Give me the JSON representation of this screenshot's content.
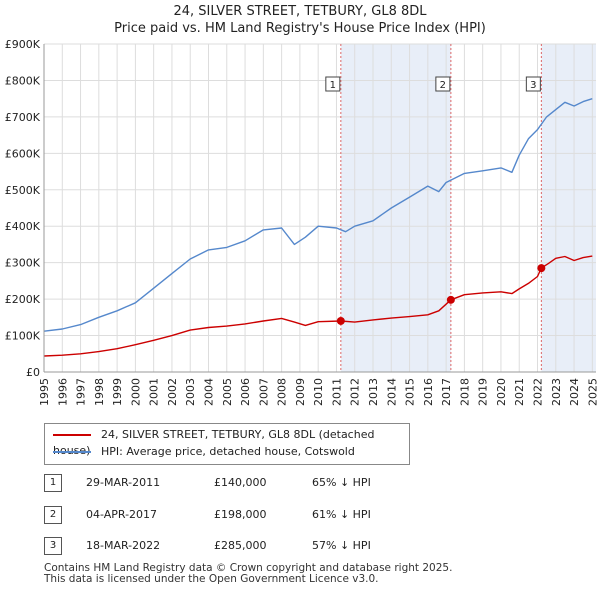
{
  "title_line1": "24, SILVER STREET, TETBURY, GL8 8DL",
  "title_line2": "Price paid vs. HM Land Registry's House Price Index (HPI)",
  "chart_data": {
    "type": "line",
    "title": "24, SILVER STREET, TETBURY, GL8 8DL",
    "subtitle": "Price paid vs. HM Land Registry's House Price Index (HPI)",
    "xlabel": "",
    "ylabel": "",
    "xlim": [
      1995,
      2025.2
    ],
    "ylim": [
      0,
      900000
    ],
    "y_ticks": [
      {
        "value": 0,
        "label": "£0"
      },
      {
        "value": 100000,
        "label": "£100K"
      },
      {
        "value": 200000,
        "label": "£200K"
      },
      {
        "value": 300000,
        "label": "£300K"
      },
      {
        "value": 400000,
        "label": "£400K"
      },
      {
        "value": 500000,
        "label": "£500K"
      },
      {
        "value": 600000,
        "label": "£600K"
      },
      {
        "value": 700000,
        "label": "£700K"
      },
      {
        "value": 800000,
        "label": "£800K"
      },
      {
        "value": 900000,
        "label": "£900K"
      }
    ],
    "x_ticks": [
      "1995",
      "1996",
      "1997",
      "1998",
      "1999",
      "2000",
      "2001",
      "2002",
      "2003",
      "2004",
      "2005",
      "2006",
      "2007",
      "2008",
      "2009",
      "2010",
      "2011",
      "2012",
      "2013",
      "2014",
      "2015",
      "2016",
      "2017",
      "2018",
      "2019",
      "2020",
      "2021",
      "2022",
      "2023",
      "2024",
      "2025"
    ],
    "grid": true,
    "series": [
      {
        "name": "24, SILVER STREET, TETBURY, GL8 8DL (detached house)",
        "color": "#cc0000",
        "x": [
          1995.0,
          1996.0,
          1997.0,
          1998.0,
          1999.0,
          2000.0,
          2001.0,
          2002.0,
          2003.0,
          2004.0,
          2005.0,
          2006.0,
          2007.0,
          2008.0,
          2008.7,
          2009.3,
          2010.0,
          2011.24,
          2012.0,
          2013.0,
          2014.0,
          2015.0,
          2016.0,
          2016.6,
          2017.26,
          2018.0,
          2019.0,
          2020.0,
          2020.6,
          2021.0,
          2021.5,
          2022.0,
          2022.21,
          2022.6,
          2023.0,
          2023.5,
          2024.0,
          2024.5,
          2025.0
        ],
        "y": [
          44000,
          46000,
          50000,
          56000,
          64000,
          75000,
          87000,
          100000,
          115000,
          122000,
          126000,
          132000,
          140000,
          147000,
          137000,
          128000,
          138000,
          140000,
          137000,
          143000,
          148000,
          152000,
          157000,
          168000,
          198000,
          212000,
          217000,
          220000,
          215000,
          228000,
          243000,
          262000,
          285000,
          298000,
          312000,
          317000,
          306000,
          314000,
          318000
        ]
      },
      {
        "name": "HPI: Average price, detached house, Cotswold",
        "color": "#5588cc",
        "x": [
          1995.0,
          1996.0,
          1997.0,
          1998.0,
          1999.0,
          2000.0,
          2001.0,
          2002.0,
          2003.0,
          2004.0,
          2005.0,
          2006.0,
          2007.0,
          2008.0,
          2008.7,
          2009.3,
          2010.0,
          2011.0,
          2011.5,
          2012.0,
          2013.0,
          2014.0,
          2015.0,
          2016.0,
          2016.6,
          2017.0,
          2018.0,
          2019.0,
          2020.0,
          2020.6,
          2021.0,
          2021.5,
          2022.0,
          2022.5,
          2023.0,
          2023.5,
          2024.0,
          2024.5,
          2025.0
        ],
        "y": [
          112000,
          118000,
          130000,
          150000,
          168000,
          190000,
          230000,
          270000,
          310000,
          335000,
          342000,
          360000,
          390000,
          395000,
          350000,
          370000,
          400000,
          395000,
          385000,
          400000,
          415000,
          450000,
          480000,
          510000,
          495000,
          520000,
          545000,
          552000,
          560000,
          548000,
          595000,
          640000,
          665000,
          700000,
          720000,
          740000,
          730000,
          742000,
          750000
        ]
      }
    ],
    "annotations": [
      {
        "label": "1",
        "x": 2011.24,
        "y": 140000,
        "date": "29-MAR-2011",
        "price": "£140,000",
        "hpi": "65% ↓ HPI"
      },
      {
        "label": "2",
        "x": 2017.26,
        "y": 198000,
        "date": "04-APR-2017",
        "price": "£198,000",
        "hpi": "61% ↓ HPI"
      },
      {
        "label": "3",
        "x": 2022.21,
        "y": 285000,
        "date": "18-MAR-2022",
        "price": "£285,000",
        "hpi": "57% ↓ HPI"
      }
    ]
  },
  "legend": {
    "property_label": "24, SILVER STREET, TETBURY, GL8 8DL (detached house)",
    "hpi_label": "HPI: Average price, detached house, Cotswold"
  },
  "sales": [
    {
      "num": "1",
      "date": "29-MAR-2011",
      "price": "£140,000",
      "hpi": "65% ↓ HPI"
    },
    {
      "num": "2",
      "date": "04-APR-2017",
      "price": "£198,000",
      "hpi": "61% ↓ HPI"
    },
    {
      "num": "3",
      "date": "18-MAR-2022",
      "price": "£285,000",
      "hpi": "57% ↓ HPI"
    }
  ],
  "footer_line1": "Contains HM Land Registry data © Crown copyright and database right 2025.",
  "footer_line2": "This data is licensed under the Open Government Licence v3.0.",
  "colors": {
    "property": "#cc0000",
    "hpi": "#5588cc",
    "shade": "#e8eef8",
    "vline": "#dd6666"
  }
}
